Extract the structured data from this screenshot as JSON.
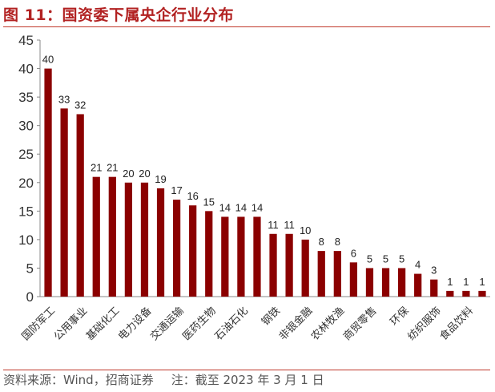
{
  "figure": {
    "title": "图 11：国资委下属央企行业分布",
    "source": "资料来源：Wind，招商证券",
    "note": "注：截至 2023 年 3 月 1 日"
  },
  "colors": {
    "bar": "#8b0000",
    "accent": "#c0392b",
    "title": "#b22222",
    "axis": "#888888"
  },
  "chart_data": {
    "type": "bar",
    "title": "",
    "xlabel": "",
    "ylabel": "",
    "ylim": [
      0,
      45
    ],
    "yticks": [
      0,
      5,
      10,
      15,
      20,
      25,
      30,
      35,
      40,
      45
    ],
    "grid": false,
    "categories": [
      "国防军工",
      "公用事业",
      "基础化工",
      "电力设备",
      "交通运输",
      "医药生物",
      "石油石化",
      "钢铁",
      "非银金融",
      "农林牧渔",
      "商贸零售",
      "环保",
      "纺织服饰",
      "食品饮料"
    ],
    "bars": [
      {
        "value": 40,
        "label": "国防军工"
      },
      {
        "value": 33,
        "label": ""
      },
      {
        "value": 32,
        "label": "公用事业"
      },
      {
        "value": 21,
        "label": ""
      },
      {
        "value": 21,
        "label": "基础化工"
      },
      {
        "value": 20,
        "label": ""
      },
      {
        "value": 20,
        "label": "电力设备"
      },
      {
        "value": 19,
        "label": ""
      },
      {
        "value": 17,
        "label": "交通运输"
      },
      {
        "value": 16,
        "label": ""
      },
      {
        "value": 15,
        "label": "医药生物"
      },
      {
        "value": 14,
        "label": ""
      },
      {
        "value": 14,
        "label": "石油石化"
      },
      {
        "value": 14,
        "label": ""
      },
      {
        "value": 11,
        "label": "钢铁"
      },
      {
        "value": 11,
        "label": ""
      },
      {
        "value": 10,
        "label": "非银金融"
      },
      {
        "value": 8,
        "label": ""
      },
      {
        "value": 8,
        "label": "农林牧渔"
      },
      {
        "value": 6,
        "label": ""
      },
      {
        "value": 5,
        "label": "商贸零售"
      },
      {
        "value": 5,
        "label": ""
      },
      {
        "value": 5,
        "label": "环保"
      },
      {
        "value": 4,
        "label": ""
      },
      {
        "value": 3,
        "label": "纺织服饰"
      },
      {
        "value": 1,
        "label": ""
      },
      {
        "value": 1,
        "label": "食品饮料"
      },
      {
        "value": 1,
        "label": ""
      }
    ]
  }
}
